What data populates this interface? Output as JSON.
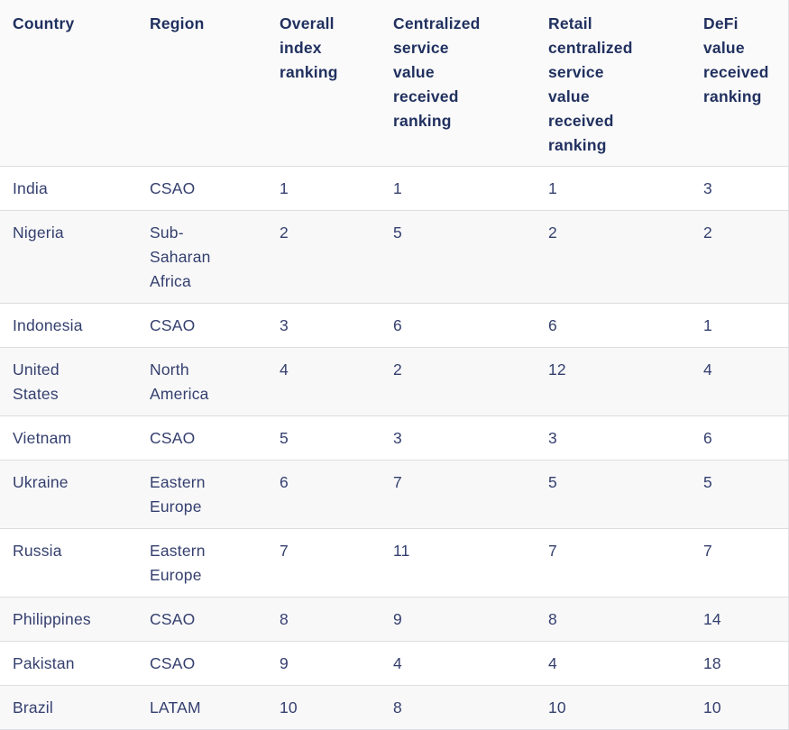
{
  "chart_data": {
    "type": "table",
    "columns": [
      {
        "key": "country",
        "label": "Country"
      },
      {
        "key": "region",
        "label": "Region"
      },
      {
        "key": "overall",
        "label": "Overall\nindex\nranking"
      },
      {
        "key": "centralized",
        "label": "Centralized\nservice\nvalue\nreceived\nranking"
      },
      {
        "key": "retail",
        "label": "Retail\ncentralized\nservice\nvalue\nreceived\nranking"
      },
      {
        "key": "defi",
        "label": "DeFi\nvalue\nreceived\nranking"
      }
    ],
    "rows": [
      {
        "country": "India",
        "region": "CSAO",
        "overall": "1",
        "centralized": "1",
        "retail": "1",
        "defi": "3"
      },
      {
        "country": "Nigeria",
        "region": "Sub-\nSaharan\nAfrica",
        "overall": "2",
        "centralized": "5",
        "retail": "2",
        "defi": "2"
      },
      {
        "country": "Indonesia",
        "region": "CSAO",
        "overall": "3",
        "centralized": "6",
        "retail": "6",
        "defi": "1"
      },
      {
        "country": "United\nStates",
        "region": "North\nAmerica",
        "overall": "4",
        "centralized": "2",
        "retail": "12",
        "defi": "4"
      },
      {
        "country": "Vietnam",
        "region": "CSAO",
        "overall": "5",
        "centralized": "3",
        "retail": "3",
        "defi": "6"
      },
      {
        "country": "Ukraine",
        "region": "Eastern\nEurope",
        "overall": "6",
        "centralized": "7",
        "retail": "5",
        "defi": "5"
      },
      {
        "country": "Russia",
        "region": "Eastern\nEurope",
        "overall": "7",
        "centralized": "11",
        "retail": "7",
        "defi": "7"
      },
      {
        "country": "Philippines",
        "region": "CSAO",
        "overall": "8",
        "centralized": "9",
        "retail": "8",
        "defi": "14"
      },
      {
        "country": "Pakistan",
        "region": "CSAO",
        "overall": "9",
        "centralized": "4",
        "retail": "4",
        "defi": "18"
      },
      {
        "country": "Brazil",
        "region": "LATAM",
        "overall": "10",
        "centralized": "8",
        "retail": "10",
        "defi": "10"
      }
    ]
  },
  "colors": {
    "header_text": "#20305f",
    "body_text": "#343f6e",
    "header_background": "#fafafa",
    "stripe_background": "#f8f8f9",
    "row_border": "#dcdde0"
  }
}
